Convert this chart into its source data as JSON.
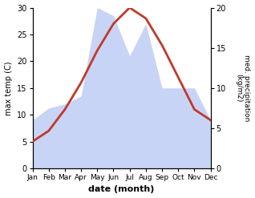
{
  "months": [
    "Jan",
    "Feb",
    "Mar",
    "Apr",
    "May",
    "Jun",
    "Jul",
    "Aug",
    "Sep",
    "Oct",
    "Nov",
    "Dec"
  ],
  "temperature": [
    5,
    7,
    11,
    16,
    22,
    27,
    30,
    28,
    23,
    17,
    11,
    9
  ],
  "precipitation": [
    6,
    7.5,
    8,
    9,
    20,
    19,
    14,
    18,
    10,
    10,
    10,
    6
  ],
  "temp_color": "#c0392b",
  "precip_color_fill": "#c8d4f5",
  "xlabel": "date (month)",
  "ylabel_left": "max temp (C)",
  "ylabel_right": "med. precipitation\n(kg/m2)",
  "ylim_left": [
    0,
    30
  ],
  "ylim_right": [
    0,
    20
  ],
  "left_ticks": [
    0,
    5,
    10,
    15,
    20,
    25,
    30
  ],
  "right_ticks": [
    0,
    5,
    10,
    15,
    20
  ],
  "background_color": "#ffffff",
  "temp_linewidth": 2.0
}
